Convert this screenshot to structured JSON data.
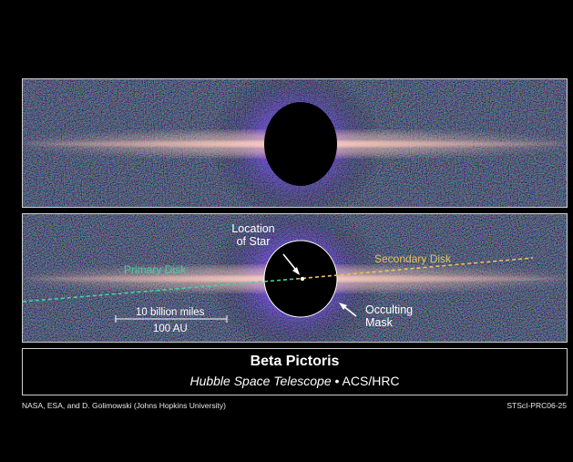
{
  "colors": {
    "background": "#000000",
    "disk_glow": "#f4b8a8",
    "primary_disk_label": "#3fd6a0",
    "secondary_disk_label": "#e8c35a",
    "frame": "#cfcfcf"
  },
  "top_panel": {
    "occulting_mask": "black-disk"
  },
  "bottom_panel": {
    "primary_disk_label": "Primary Disk",
    "secondary_disk_label": "Secondary Disk",
    "star_label_line1": "Location",
    "star_label_line2": "of Star",
    "mask_label_line1": "Occulting",
    "mask_label_line2": "Mask",
    "scale_miles": "10 billion miles",
    "scale_au": "100 AU"
  },
  "caption": {
    "title": "Beta Pictoris",
    "subtitle_italic": "Hubble Space Telescope",
    "subtitle_separator": " • ",
    "subtitle_instrument": "ACS/HRC"
  },
  "credits": {
    "left": "NASA, ESA, and D. Golimowski (Johns Hopkins University)",
    "right": "STScI-PRC06-25"
  }
}
